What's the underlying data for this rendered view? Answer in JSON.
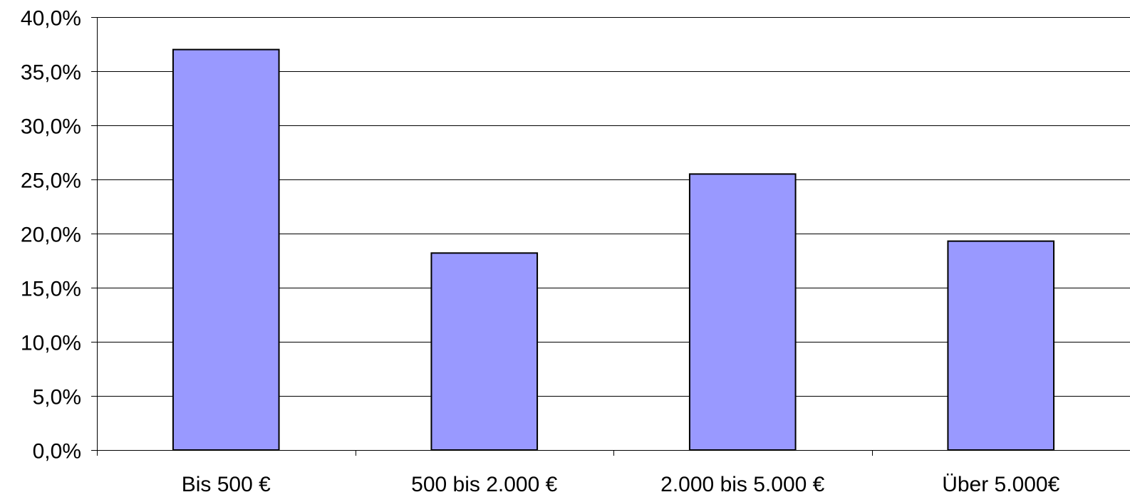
{
  "chart_data": {
    "type": "bar",
    "categories": [
      "Bis 500 €",
      "500 bis 2.000 €",
      "2.000 bis 5.000 €",
      "Über 5.000€"
    ],
    "values": [
      37.0,
      18.2,
      25.5,
      19.3
    ],
    "value_unit": "percent",
    "title": "",
    "xlabel": "",
    "ylabel": "",
    "ylim": [
      0,
      40
    ],
    "yticks": [
      0,
      5,
      10,
      15,
      20,
      25,
      30,
      35,
      40
    ],
    "ytick_labels": [
      "0,0%",
      "5,0%",
      "10,0%",
      "15,0%",
      "20,0%",
      "25,0%",
      "30,0%",
      "35,0%",
      "40,0%"
    ],
    "grid": true,
    "legend": "none",
    "colors": {
      "bar_fill": "#9999ff",
      "bar_stroke": "#000000",
      "grid": "#000000",
      "axis": "#000000",
      "background": "#ffffff"
    }
  }
}
